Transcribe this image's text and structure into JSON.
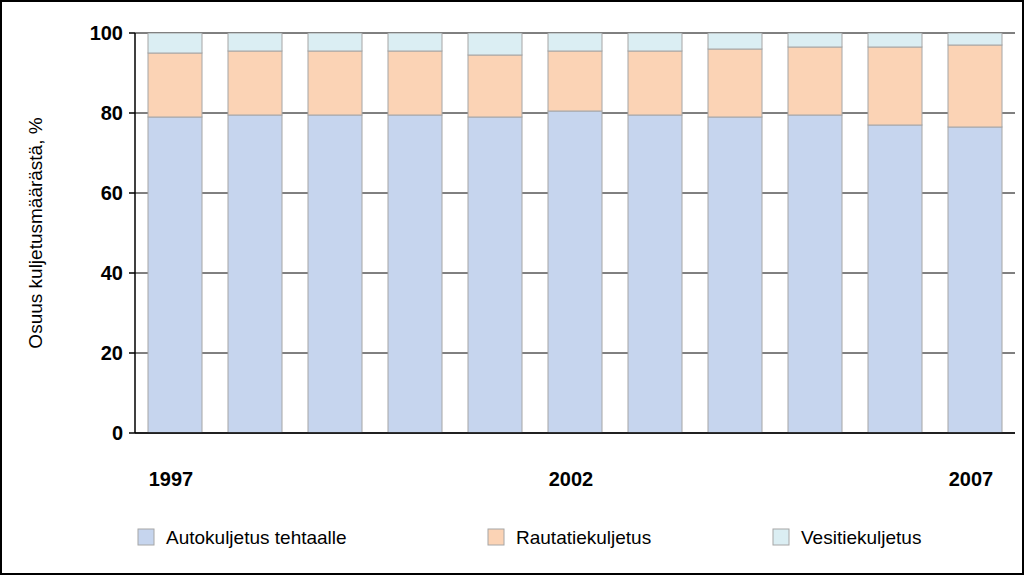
{
  "chart_data": {
    "type": "bar",
    "stacked": true,
    "y_label": "Osuus kuljetusmäärästä, %",
    "categories": [
      "1997",
      null,
      null,
      null,
      null,
      "2002",
      null,
      null,
      null,
      null,
      "2007"
    ],
    "series": [
      {
        "name": "Autokuljetus tehtaalle",
        "color": "#c6d5ee",
        "values": [
          79,
          79.5,
          79.5,
          79.5,
          79,
          80.5,
          79.5,
          79,
          79.5,
          77,
          76.5
        ]
      },
      {
        "name": "Rautatiekuljetus",
        "color": "#fbd3b5",
        "values": [
          16,
          16,
          16,
          16,
          15.5,
          15,
          16,
          17,
          17,
          19.5,
          20.5
        ]
      },
      {
        "name": "Vesitiekuljetus",
        "color": "#dbeef3",
        "values": [
          5,
          4.5,
          4.5,
          4.5,
          5.5,
          4.5,
          4.5,
          4,
          3.5,
          3.5,
          3
        ]
      }
    ],
    "ylim": [
      0,
      100
    ],
    "yticks": [
      0,
      20,
      40,
      60,
      80,
      100
    ],
    "grid": true,
    "legend": "bottom"
  }
}
